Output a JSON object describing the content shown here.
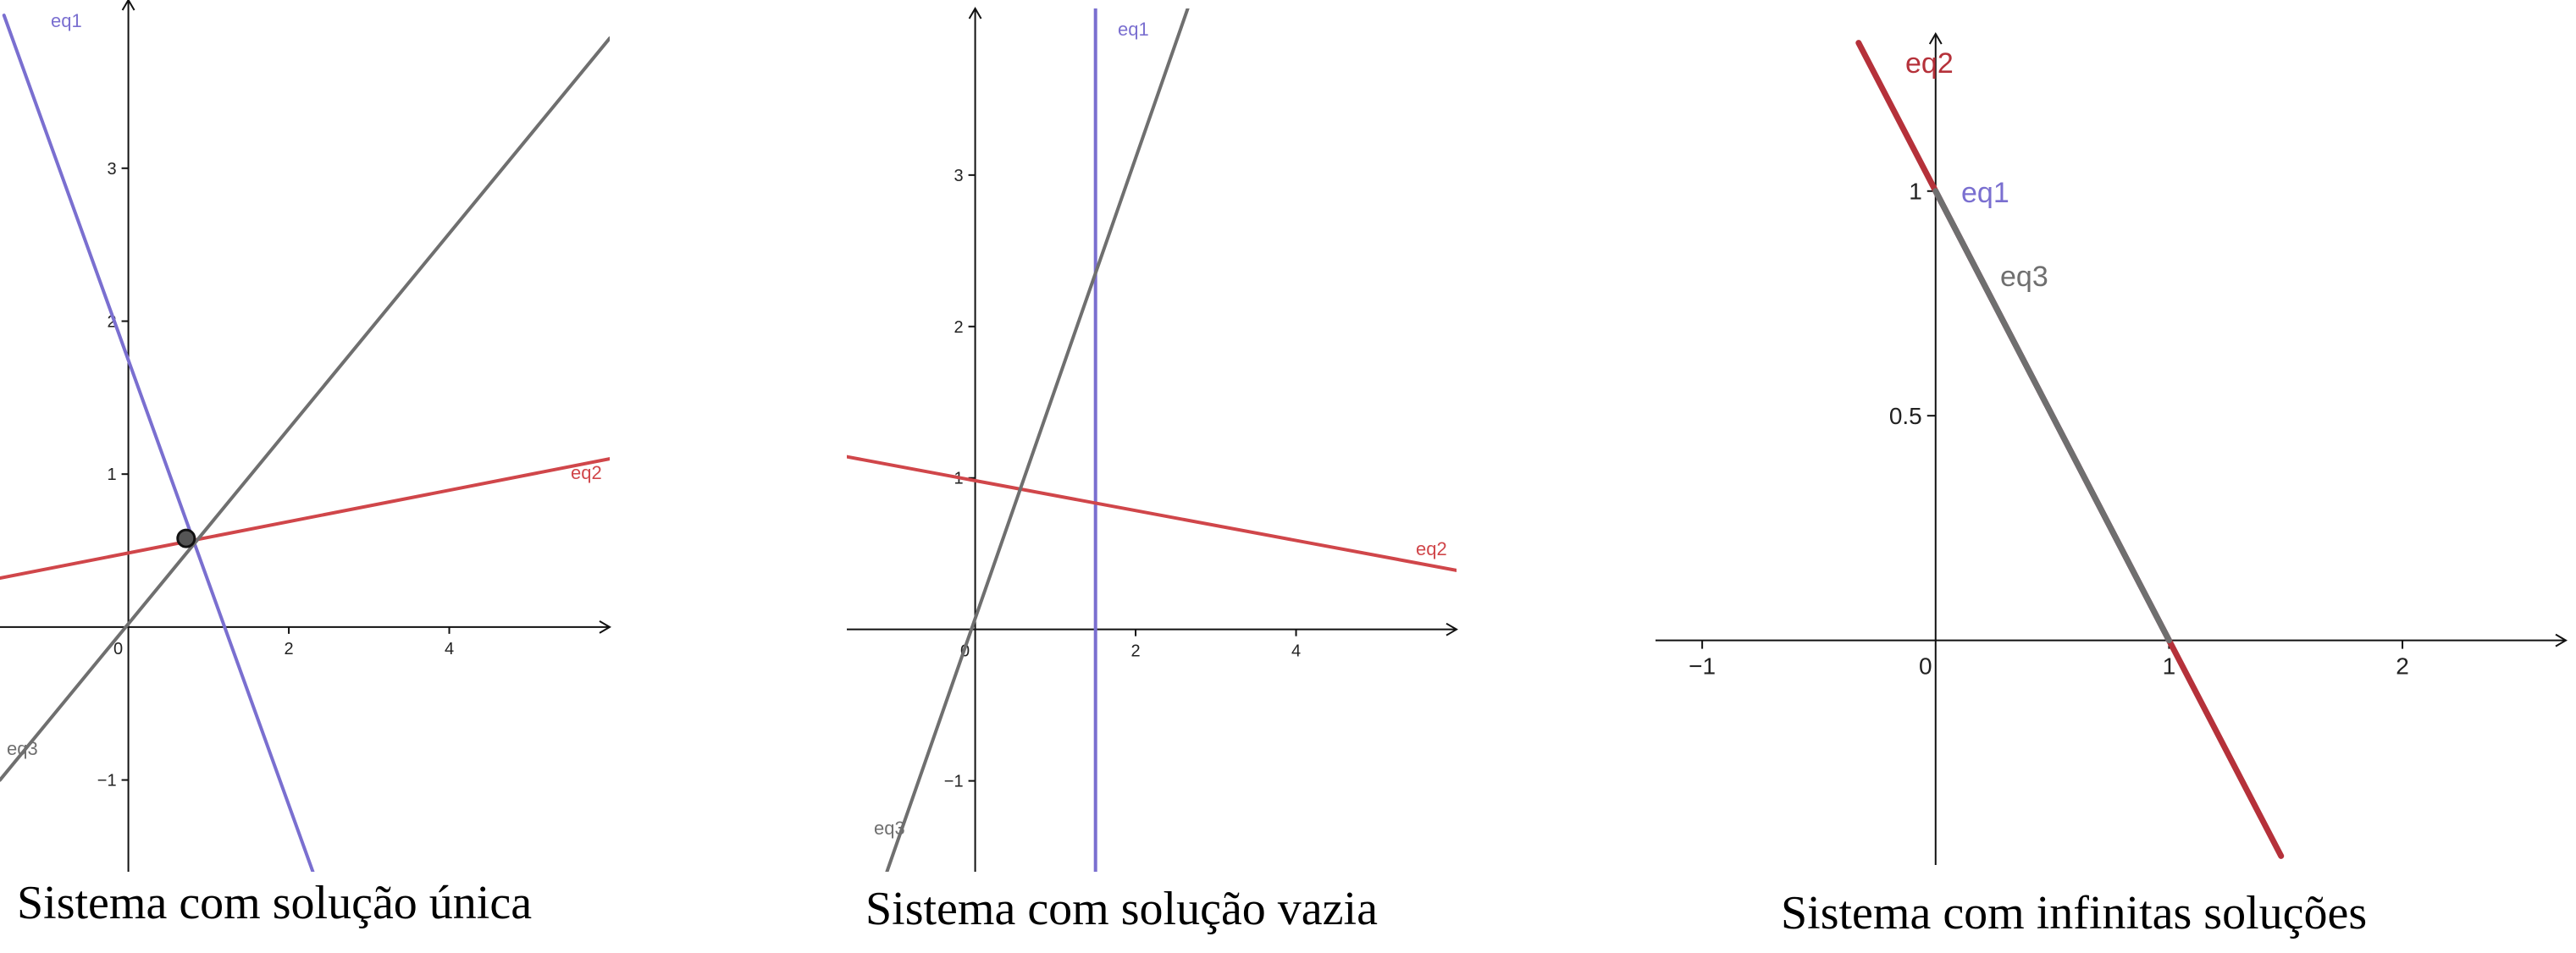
{
  "chart_data": [
    {
      "type": "line",
      "caption": "Sistema com solução única",
      "x_ticks": [
        {
          "v": 0,
          "label": "0"
        },
        {
          "v": 2,
          "label": "2"
        },
        {
          "v": 4,
          "label": "4"
        }
      ],
      "y_ticks": [
        {
          "v": -1,
          "label": "−1"
        },
        {
          "v": 1,
          "label": "1"
        },
        {
          "v": 2,
          "label": "2"
        },
        {
          "v": 3,
          "label": "3"
        }
      ],
      "xlim": [
        -1.6,
        6.0
      ],
      "ylim": [
        -1.6,
        4.1
      ],
      "series": [
        {
          "name": "eq1",
          "color": "#7a6fd0",
          "points": [
            [
              -1.55,
              4.0
            ],
            [
              2.3,
              -1.6
            ]
          ]
        },
        {
          "name": "eq2",
          "color": "#d0464a",
          "points": [
            [
              -1.6,
              0.32
            ],
            [
              6.0,
              1.1
            ]
          ]
        },
        {
          "name": "eq3",
          "color": "#6f6f6f",
          "points": [
            [
              -1.6,
              -1.0
            ],
            [
              6.0,
              3.85
            ]
          ]
        }
      ],
      "points": [
        {
          "x": 0.72,
          "y": 0.58
        }
      ]
    },
    {
      "type": "line",
      "caption": "Sistema com solução vazia",
      "x_ticks": [
        {
          "v": 0,
          "label": "0"
        },
        {
          "v": 2,
          "label": "2"
        },
        {
          "v": 4,
          "label": "4"
        }
      ],
      "y_ticks": [
        {
          "v": -1,
          "label": "−1"
        },
        {
          "v": 1,
          "label": "1"
        },
        {
          "v": 2,
          "label": "2"
        },
        {
          "v": 3,
          "label": "3"
        }
      ],
      "xlim": [
        -1.6,
        6.0
      ],
      "ylim": [
        -1.6,
        4.1
      ],
      "series": [
        {
          "name": "eq1",
          "color": "#7a6fd0",
          "points": [
            [
              1.5,
              -1.6
            ],
            [
              1.5,
              4.1
            ]
          ]
        },
        {
          "name": "eq2",
          "color": "#d0464a",
          "points": [
            [
              -1.8,
              1.16
            ],
            [
              6.0,
              0.39
            ]
          ]
        },
        {
          "name": "eq3",
          "color": "#6f6f6f",
          "points": [
            [
              -1.1,
              -1.6
            ],
            [
              2.65,
              4.1
            ]
          ]
        }
      ],
      "points": []
    },
    {
      "type": "line",
      "caption": "Sistema com infinitas soluções",
      "x_ticks": [
        {
          "v": -1,
          "label": "−1"
        },
        {
          "v": 0,
          "label": "0"
        },
        {
          "v": 1,
          "label": "1"
        },
        {
          "v": 2,
          "label": "2"
        }
      ],
      "y_ticks": [
        {
          "v": 0.5,
          "label": "0.5"
        },
        {
          "v": 1,
          "label": "1"
        }
      ],
      "xlim": [
        -1.2,
        2.7
      ],
      "ylim": [
        -0.5,
        1.35
      ],
      "series": [
        {
          "name": "eq1",
          "color": "#7a6fd0",
          "points": [
            [
              0.0,
              1.0
            ],
            [
              1.0,
              0.0
            ]
          ]
        },
        {
          "name": "eq2",
          "color": "#b5313a",
          "points": [
            [
              -0.33,
              1.33
            ],
            [
              1.48,
              -0.48
            ]
          ]
        },
        {
          "name": "eq3",
          "color": "#6f6f6f",
          "points": [
            [
              0.0,
              1.0
            ],
            [
              1.0,
              0.0
            ]
          ]
        }
      ],
      "points": []
    }
  ]
}
